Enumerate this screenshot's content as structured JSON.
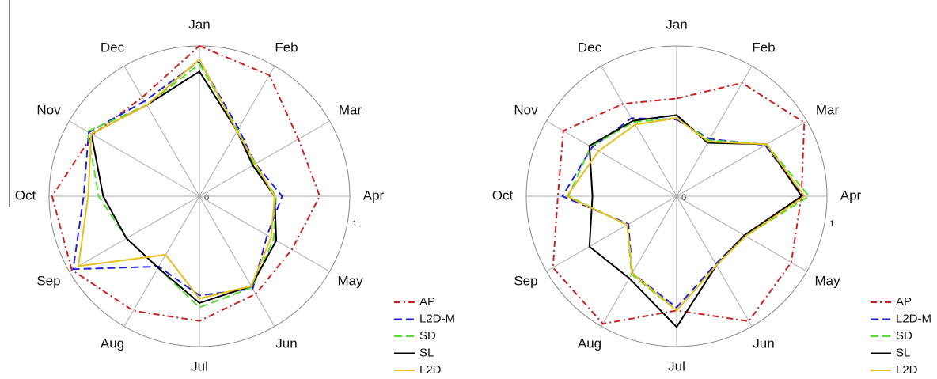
{
  "chart_data": [
    {
      "type": "radar",
      "categories": [
        "Jan",
        "Feb",
        "Mar",
        "Apr",
        "May",
        "Jun",
        "Jul",
        "Aug",
        "Sep",
        "Oct",
        "Nov",
        "Dec"
      ],
      "rlim": [
        0,
        1
      ],
      "rticks": [
        0,
        1
      ],
      "legend": "lower right",
      "series": [
        {
          "name": "AP",
          "color": "#cc2020",
          "dash": "dashdot",
          "values": [
            1.0,
            0.93,
            0.76,
            0.8,
            0.71,
            0.75,
            0.83,
            0.88,
            0.98,
            0.98,
            0.82,
            0.76
          ]
        },
        {
          "name": "L2D-M",
          "color": "#2020dd",
          "dash": "dashed",
          "values": [
            0.9,
            0.52,
            0.43,
            0.55,
            0.52,
            0.71,
            0.66,
            0.54,
            0.97,
            0.77,
            0.85,
            0.73
          ]
        },
        {
          "name": "SD",
          "color": "#55dd33",
          "dash": "dashed",
          "values": [
            0.88,
            0.51,
            0.42,
            0.51,
            0.57,
            0.7,
            0.74,
            0.55,
            0.56,
            0.67,
            0.86,
            0.7
          ]
        },
        {
          "name": "SL",
          "color": "#000000",
          "dash": "solid",
          "values": [
            0.83,
            0.5,
            0.41,
            0.5,
            0.59,
            0.69,
            0.71,
            0.55,
            0.56,
            0.64,
            0.83,
            0.7
          ]
        },
        {
          "name": "L2D",
          "color": "#e8c020",
          "dash": "solid",
          "values": [
            0.91,
            0.5,
            0.43,
            0.5,
            0.55,
            0.69,
            0.68,
            0.45,
            0.93,
            0.74,
            0.83,
            0.7
          ]
        }
      ]
    },
    {
      "type": "radar",
      "categories": [
        "Jan",
        "Feb",
        "Mar",
        "Apr",
        "May",
        "Jun",
        "Jul",
        "Aug",
        "Sep",
        "Oct",
        "Nov",
        "Dec"
      ],
      "rlim": [
        0,
        1
      ],
      "rticks": [
        0,
        1
      ],
      "legend": "lower right",
      "series": [
        {
          "name": "AP",
          "color": "#cc2020",
          "dash": "dashdot",
          "values": [
            0.65,
            0.87,
            0.98,
            0.83,
            0.88,
            0.96,
            0.76,
            0.98,
            0.95,
            0.79,
            0.87,
            0.71
          ]
        },
        {
          "name": "L2D-M",
          "color": "#2020dd",
          "dash": "dashed",
          "values": [
            0.51,
            0.44,
            0.68,
            0.84,
            0.52,
            0.52,
            0.74,
            0.59,
            0.37,
            0.76,
            0.65,
            0.6
          ]
        },
        {
          "name": "SD",
          "color": "#55dd33",
          "dash": "dashed",
          "values": [
            0.52,
            0.43,
            0.69,
            0.88,
            0.53,
            0.53,
            0.76,
            0.6,
            0.38,
            0.72,
            0.66,
            0.57
          ]
        },
        {
          "name": "SL",
          "color": "#000000",
          "dash": "solid",
          "values": [
            0.54,
            0.41,
            0.69,
            0.83,
            0.52,
            0.53,
            0.87,
            0.63,
            0.67,
            0.56,
            0.67,
            0.58
          ]
        },
        {
          "name": "L2D",
          "color": "#e8c020",
          "dash": "solid",
          "values": [
            0.52,
            0.42,
            0.69,
            0.85,
            0.53,
            0.53,
            0.76,
            0.59,
            0.38,
            0.73,
            0.6,
            0.55
          ]
        }
      ]
    }
  ]
}
